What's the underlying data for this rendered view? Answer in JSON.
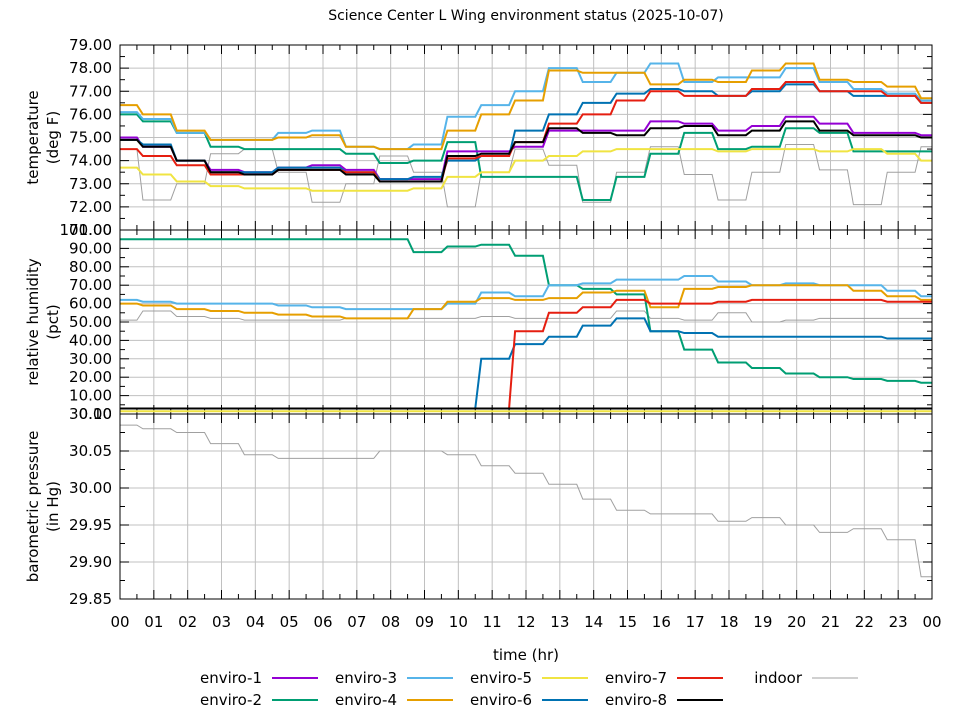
{
  "chart_data": {
    "type": "line",
    "title": "Science Center L Wing environment status (2025-10-07)",
    "xlabel": "time (hr)",
    "x_tick_labels": [
      "00",
      "01",
      "02",
      "03",
      "04",
      "05",
      "06",
      "07",
      "08",
      "09",
      "10",
      "11",
      "12",
      "13",
      "14",
      "15",
      "16",
      "17",
      "18",
      "19",
      "20",
      "21",
      "22",
      "23",
      "00"
    ],
    "xlim": [
      0,
      24
    ],
    "grid": true,
    "legend_placement": "bottom",
    "x": [
      0,
      1,
      2,
      3,
      4,
      5,
      6,
      7,
      8,
      9,
      10,
      11,
      12,
      13,
      14,
      15,
      16,
      17,
      18,
      19,
      20,
      21,
      22,
      23,
      24
    ],
    "series_styles": [
      {
        "name": "enviro-1",
        "color": "#9400d3"
      },
      {
        "name": "enviro-2",
        "color": "#009e73"
      },
      {
        "name": "enviro-3",
        "color": "#56b4e9"
      },
      {
        "name": "enviro-4",
        "color": "#e69f00"
      },
      {
        "name": "enviro-5",
        "color": "#f0e442"
      },
      {
        "name": "enviro-6",
        "color": "#0072b2"
      },
      {
        "name": "enviro-7",
        "color": "#e51e10"
      },
      {
        "name": "enviro-8",
        "color": "#000000"
      },
      {
        "name": "indoor",
        "color": "#a0a0a0"
      }
    ],
    "panels": [
      {
        "id": "temperature",
        "ylabel": [
          "temperature",
          "(deg F)"
        ],
        "ylim": [
          71,
          79
        ],
        "y_tick_labels": [
          "79.00",
          "78.00",
          "77.00",
          "76.00",
          "75.00",
          "74.00",
          "73.00",
          "72.00",
          "71.00"
        ],
        "series": [
          {
            "name": "enviro-1",
            "values": [
              75.0,
              74.6,
              74.0,
              73.6,
              73.5,
              73.7,
              73.8,
              73.6,
              73.2,
              73.2,
              74.4,
              74.4,
              74.6,
              75.3,
              75.3,
              75.3,
              75.7,
              75.6,
              75.3,
              75.5,
              75.9,
              75.6,
              75.2,
              75.2,
              75.1
            ]
          },
          {
            "name": "enviro-2",
            "values": [
              76.0,
              75.7,
              75.2,
              74.6,
              74.5,
              74.5,
              74.5,
              74.3,
              73.9,
              74.0,
              74.8,
              73.3,
              73.3,
              73.3,
              72.3,
              73.3,
              74.3,
              75.2,
              74.5,
              74.6,
              75.4,
              75.2,
              74.4,
              74.4,
              74.4
            ]
          },
          {
            "name": "enviro-3",
            "values": [
              76.1,
              75.8,
              75.2,
              74.9,
              74.9,
              75.2,
              75.3,
              74.6,
              74.5,
              74.7,
              75.9,
              76.4,
              77.0,
              78.0,
              77.4,
              77.8,
              78.2,
              77.4,
              77.6,
              77.6,
              78.0,
              77.4,
              77.1,
              76.9,
              76.6
            ]
          },
          {
            "name": "enviro-4",
            "values": [
              76.4,
              76.0,
              75.3,
              74.9,
              74.9,
              75.0,
              75.1,
              74.6,
              74.5,
              74.5,
              75.3,
              76.0,
              76.6,
              77.9,
              77.8,
              77.8,
              77.3,
              77.5,
              77.4,
              77.9,
              78.2,
              77.5,
              77.4,
              77.2,
              76.7
            ]
          },
          {
            "name": "enviro-5",
            "values": [
              73.7,
              73.4,
              73.1,
              72.9,
              72.8,
              72.8,
              72.7,
              72.7,
              72.7,
              72.8,
              73.3,
              73.5,
              74.0,
              74.2,
              74.4,
              74.5,
              74.5,
              74.5,
              74.4,
              74.5,
              74.5,
              74.4,
              74.5,
              74.3,
              74.0
            ]
          },
          {
            "name": "enviro-6",
            "values": [
              74.9,
              74.7,
              74.0,
              73.5,
              73.5,
              73.7,
              73.7,
              73.5,
              73.2,
              73.3,
              74.0,
              74.2,
              75.3,
              76.0,
              76.5,
              76.9,
              77.1,
              77.0,
              76.8,
              77.0,
              77.3,
              77.0,
              76.8,
              76.8,
              76.5
            ]
          },
          {
            "name": "enviro-7",
            "values": [
              74.5,
              74.2,
              73.8,
              73.4,
              73.4,
              73.6,
              73.6,
              73.5,
              73.1,
              73.1,
              74.1,
              74.2,
              74.8,
              75.6,
              76.0,
              76.6,
              77.0,
              76.8,
              76.8,
              77.1,
              77.4,
              77.0,
              77.0,
              76.8,
              76.5
            ]
          },
          {
            "name": "enviro-8",
            "values": [
              74.9,
              74.6,
              74.0,
              73.5,
              73.4,
              73.6,
              73.6,
              73.4,
              73.1,
              73.1,
              74.2,
              74.3,
              74.8,
              75.4,
              75.2,
              75.1,
              75.4,
              75.5,
              75.1,
              75.3,
              75.7,
              75.3,
              75.1,
              75.1,
              75.0
            ]
          },
          {
            "name": "indoor",
            "values": [
              74.5,
              72.3,
              73.0,
              74.3,
              74.5,
              73.5,
              72.2,
              73.0,
              74.2,
              73.5,
              72.0,
              73.5,
              74.5,
              73.8,
              72.2,
              73.5,
              74.6,
              73.4,
              72.3,
              73.5,
              74.7,
              73.6,
              72.1,
              73.5,
              74.6
            ]
          }
        ]
      },
      {
        "id": "humidity",
        "ylabel": [
          "relative humidity",
          "(pct)"
        ],
        "ylim": [
          0,
          100
        ],
        "y_tick_labels": [
          "100.00",
          "90.00",
          "80.00",
          "70.00",
          "60.00",
          "50.00",
          "40.00",
          "30.00",
          "20.00",
          "10.00",
          "0.00"
        ],
        "series": [
          {
            "name": "enviro-1",
            "values": [
              3,
              3,
              3,
              3,
              3,
              3,
              3,
              3,
              3,
              3,
              3,
              3,
              3,
              3,
              3,
              3,
              3,
              3,
              3,
              3,
              3,
              3,
              3,
              3,
              3
            ]
          },
          {
            "name": "enviro-2",
            "values": [
              95,
              95,
              95,
              95,
              95,
              95,
              95,
              95,
              95,
              88,
              91,
              92,
              86,
              70,
              68,
              65,
              45,
              35,
              28,
              25,
              22,
              20,
              19,
              18,
              17
            ]
          },
          {
            "name": "enviro-3",
            "values": [
              62,
              61,
              60,
              60,
              60,
              59,
              58,
              57,
              57,
              57,
              60,
              66,
              64,
              70,
              71,
              73,
              73,
              75,
              72,
              70,
              71,
              70,
              70,
              67,
              64
            ]
          },
          {
            "name": "enviro-4",
            "values": [
              60,
              59,
              57,
              56,
              55,
              54,
              53,
              52,
              52,
              57,
              61,
              63,
              62,
              63,
              66,
              67,
              58,
              68,
              69,
              70,
              70,
              70,
              67,
              64,
              62
            ]
          },
          {
            "name": "enviro-5",
            "values": [
              1.5,
              1.5,
              1.5,
              1.5,
              1.5,
              1.5,
              1.5,
              1.5,
              1.5,
              1.5,
              1.5,
              1.5,
              1.5,
              1.5,
              1.5,
              1.5,
              1.5,
              1.5,
              1.5,
              1.5,
              1.5,
              1.5,
              1.5,
              1.5,
              1.5
            ]
          },
          {
            "name": "enviro-6",
            "values": [
              3,
              3,
              3,
              3,
              3,
              3,
              3,
              3,
              3,
              3,
              3,
              30,
              38,
              42,
              48,
              52,
              45,
              44,
              42,
              42,
              42,
              42,
              42,
              41,
              41
            ]
          },
          {
            "name": "enviro-7",
            "values": [
              3,
              3,
              3,
              3,
              3,
              3,
              3,
              3,
              3,
              3,
              3,
              3,
              45,
              55,
              58,
              62,
              60,
              60,
              61,
              62,
              62,
              62,
              62,
              61,
              61
            ]
          },
          {
            "name": "enviro-8",
            "values": [
              3,
              3,
              3,
              3,
              3,
              3,
              3,
              3,
              3,
              3,
              3,
              3,
              3,
              3,
              3,
              3,
              3,
              3,
              3,
              3,
              3,
              3,
              3,
              3,
              3
            ]
          },
          {
            "name": "indoor",
            "values": [
              51,
              56,
              53,
              52,
              51,
              51,
              51,
              52,
              52,
              52,
              52,
              53,
              52,
              52,
              52,
              56,
              52,
              51,
              55,
              50,
              51,
              52,
              52,
              52,
              52
            ]
          }
        ]
      },
      {
        "id": "pressure",
        "ylabel": [
          "barometric pressure",
          "(in Hg)"
        ],
        "ylim": [
          29.85,
          30.1
        ],
        "y_tick_labels": [
          "30.10",
          "30.05",
          "30.00",
          "29.95",
          "29.90",
          "29.85"
        ],
        "series": [
          {
            "name": "indoor",
            "values": [
              30.085,
              30.08,
              30.075,
              30.06,
              30.045,
              30.04,
              30.04,
              30.04,
              30.05,
              30.05,
              30.045,
              30.03,
              30.02,
              30.005,
              29.985,
              29.97,
              29.965,
              29.965,
              29.955,
              29.96,
              29.95,
              29.94,
              29.945,
              29.93,
              29.88
            ]
          }
        ]
      }
    ]
  }
}
